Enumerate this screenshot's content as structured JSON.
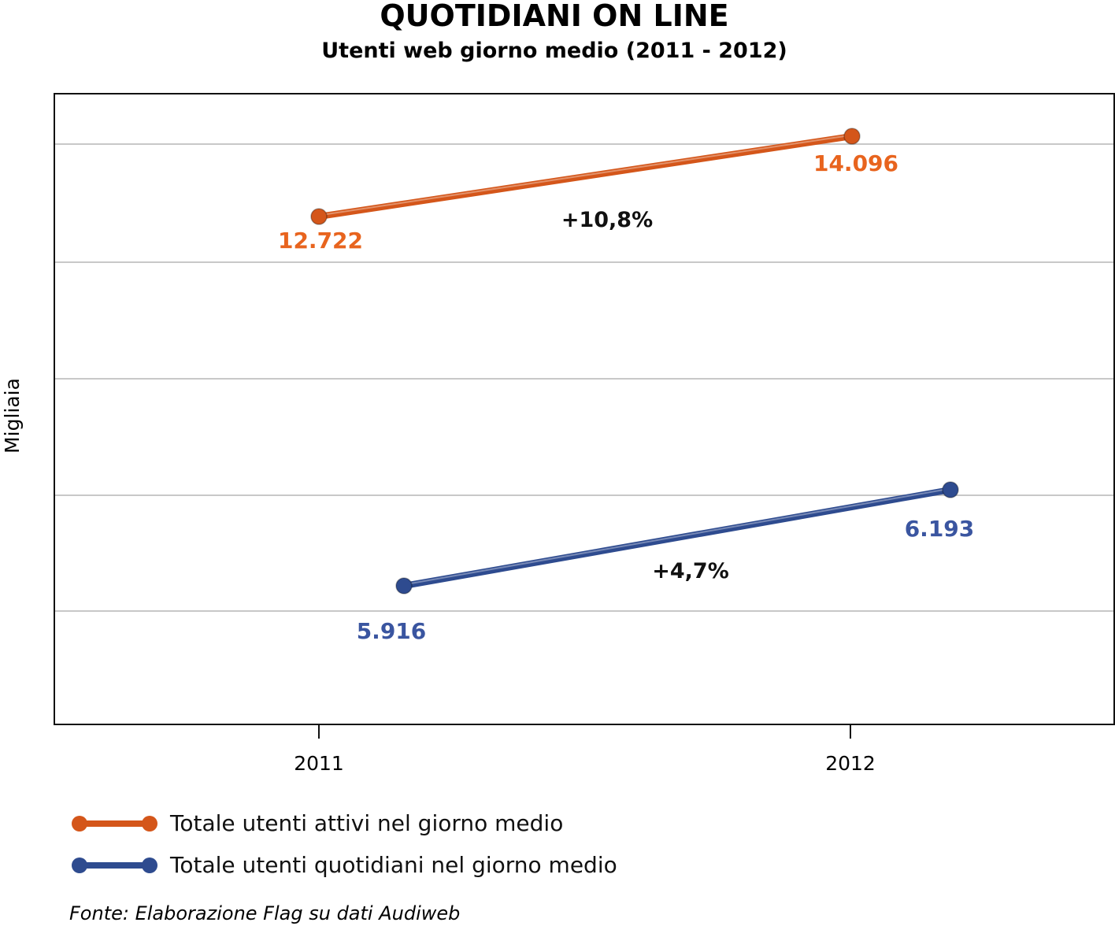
{
  "chart_data": {
    "type": "line",
    "title": "QUOTIDIANI ON LINE",
    "subtitle": "Utenti web giorno medio (2011 - 2012)",
    "ylabel": "Migliaia",
    "xlabel": "",
    "categories": [
      "2011",
      "2012"
    ],
    "grid": true,
    "series": [
      {
        "name": "Totale utenti attivi nel giorno medio",
        "values": [
          12722,
          14096
        ],
        "labels": [
          "12.722",
          "14.096"
        ],
        "change": "+10,8%",
        "color": "#d4561a",
        "label_color": "#e8641e"
      },
      {
        "name": "Totale utenti quotidiani nel giorno medio",
        "values": [
          5916,
          6193
        ],
        "labels": [
          "5.916",
          "6.193"
        ],
        "change": "+4,7%",
        "color": "#2e4b8f",
        "label_color": "#3a55a0"
      }
    ],
    "legend_position": "bottom-left",
    "source": "Fonte: Elaborazione Flag su dati Audiweb"
  }
}
